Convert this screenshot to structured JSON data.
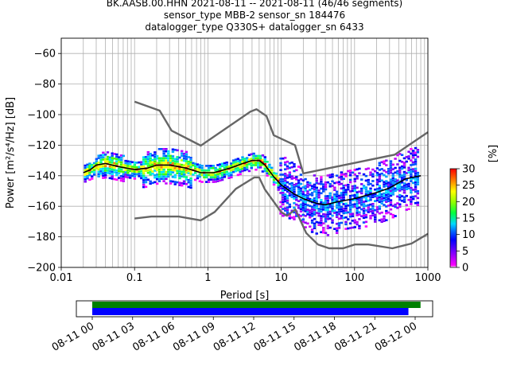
{
  "header": {
    "line1": "BK.AASB.00.HHN   2021-08-11 -- 2021-08-11  (46/46 segments)",
    "line2": "sensor_type MBB-2 sensor_sn 184476",
    "line3": "datalogger_type Q330S+ datalogger_sn 6433"
  },
  "chart_data": [
    {
      "type": "heatmap",
      "title": "",
      "xlabel": "Period [s]",
      "ylabel": "Power [m²/s⁴/Hz] [dB]",
      "xscale": "log",
      "xlim": [
        0.01,
        1000
      ],
      "ylim": [
        -200,
        -50
      ],
      "grid": true,
      "x_ticks": [
        {
          "value": 0.01,
          "label": "0.01"
        },
        {
          "value": 0.1,
          "label": "0.1"
        },
        {
          "value": 1,
          "label": "1"
        },
        {
          "value": 10,
          "label": "10"
        },
        {
          "value": 100,
          "label": "100"
        },
        {
          "value": 1000,
          "label": "1000"
        }
      ],
      "y_ticks": [
        {
          "value": -60,
          "label": "−60"
        },
        {
          "value": -80,
          "label": "−80"
        },
        {
          "value": -100,
          "label": "−100"
        },
        {
          "value": -120,
          "label": "−120"
        },
        {
          "value": -140,
          "label": "−140"
        },
        {
          "value": -160,
          "label": "−160"
        },
        {
          "value": -180,
          "label": "−180"
        },
        {
          "value": -200,
          "label": "−200"
        }
      ],
      "colorbar": {
        "label": "[%]",
        "range": [
          0,
          30
        ],
        "ticks": [
          {
            "value": 0,
            "label": "0"
          },
          {
            "value": 5,
            "label": "5"
          },
          {
            "value": 10,
            "label": "10"
          },
          {
            "value": 15,
            "label": "15"
          },
          {
            "value": 20,
            "label": "20"
          },
          {
            "value": 25,
            "label": "25"
          },
          {
            "value": 30,
            "label": "30"
          }
        ]
      },
      "series": [
        {
          "role": "noise-model-high",
          "color": "#666666",
          "points": [
            [
              0.1,
              -91.5
            ],
            [
              0.22,
              -97.4
            ],
            [
              0.32,
              -110.5
            ],
            [
              0.8,
              -120.3
            ],
            [
              3.8,
              -98.0
            ],
            [
              4.6,
              -96.5
            ],
            [
              6.3,
              -101.0
            ],
            [
              7.9,
              -113.5
            ],
            [
              15.4,
              -120.0
            ],
            [
              20,
              -138.5
            ],
            [
              354.8,
              -126.2
            ],
            [
              1000,
              -111.5
            ]
          ]
        },
        {
          "role": "noise-model-low",
          "color": "#666666",
          "points": [
            [
              0.1,
              -168.0
            ],
            [
              0.17,
              -166.7
            ],
            [
              0.4,
              -166.7
            ],
            [
              0.8,
              -169.2
            ],
            [
              1.24,
              -163.7
            ],
            [
              2.4,
              -148.6
            ],
            [
              4.3,
              -141.1
            ],
            [
              5.0,
              -141.1
            ],
            [
              6.0,
              -149.0
            ],
            [
              10,
              -163.8
            ],
            [
              12,
              -166.2
            ],
            [
              15.6,
              -162.1
            ],
            [
              21.9,
              -177.5
            ],
            [
              31.6,
              -185.0
            ],
            [
              45,
              -187.5
            ],
            [
              70,
              -187.5
            ],
            [
              101,
              -185.0
            ],
            [
              154,
              -185.0
            ],
            [
              328,
              -187.5
            ],
            [
              600,
              -184.4
            ],
            [
              1000,
              -178.0
            ]
          ]
        },
        {
          "role": "mean-psd",
          "color": "#000000",
          "points": [
            [
              0.02,
              -138
            ],
            [
              0.025,
              -136
            ],
            [
              0.03,
              -133
            ],
            [
              0.04,
              -132
            ],
            [
              0.06,
              -134
            ],
            [
              0.1,
              -136
            ],
            [
              0.15,
              -135
            ],
            [
              0.2,
              -133
            ],
            [
              0.3,
              -133
            ],
            [
              0.5,
              -135
            ],
            [
              0.8,
              -138
            ],
            [
              1.2,
              -138
            ],
            [
              2,
              -135
            ],
            [
              3,
              -132
            ],
            [
              4,
              -130
            ],
            [
              5,
              -130
            ],
            [
              6,
              -133
            ],
            [
              8,
              -141
            ],
            [
              10,
              -146
            ],
            [
              15,
              -152
            ],
            [
              20,
              -155
            ],
            [
              30,
              -158
            ],
            [
              40,
              -159
            ],
            [
              60,
              -157
            ],
            [
              100,
              -155
            ],
            [
              200,
              -151
            ],
            [
              300,
              -148
            ],
            [
              500,
              -142
            ],
            [
              800,
              -140
            ]
          ]
        }
      ],
      "density_description_bands": [
        {
          "period_range": [
            0.018,
            0.06
          ],
          "power_range": [
            -142,
            -122
          ],
          "peak_percent": 30
        },
        {
          "period_range": [
            0.06,
            1.5
          ],
          "power_range": [
            -148,
            -114
          ],
          "peak_percent": 25
        },
        {
          "period_range": [
            1.5,
            9
          ],
          "power_range": [
            -146,
            -128
          ],
          "peak_percent": 30
        },
        {
          "period_range": [
            9,
            800
          ],
          "power_range": [
            -172,
            -112
          ],
          "peak_percent": 20
        }
      ]
    },
    {
      "type": "timeline",
      "x_ticks": [
        {
          "label": "08-11 00"
        },
        {
          "label": "08-11 03"
        },
        {
          "label": "08-11 06"
        },
        {
          "label": "08-11 09"
        },
        {
          "label": "08-11 12"
        },
        {
          "label": "08-11 15"
        },
        {
          "label": "08-11 18"
        },
        {
          "label": "08-11 21"
        },
        {
          "label": "08-12 00"
        }
      ],
      "series": [
        {
          "role": "data-coverage",
          "color": "#008000",
          "start_hours": 0,
          "end_hours": 24.4
        },
        {
          "role": "used-segments",
          "color": "#0000ff",
          "start_hours": 0,
          "end_hours": 23.5
        }
      ]
    }
  ]
}
